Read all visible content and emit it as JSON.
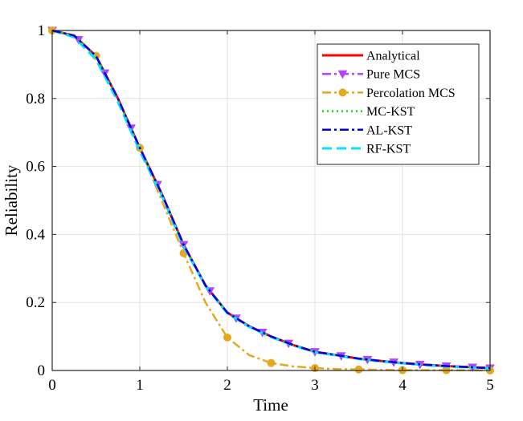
{
  "chart_data": {
    "type": "line",
    "title": "",
    "xlabel": "Time",
    "ylabel": "Reliability",
    "xlim": [
      0,
      5
    ],
    "ylim": [
      0,
      1
    ],
    "grid": true,
    "legend_position": "top-right",
    "x_ticks": [
      0,
      1,
      2,
      3,
      4,
      5
    ],
    "y_ticks": [
      0,
      0.2,
      0.4,
      0.6,
      0.8,
      1
    ],
    "x_tick_labels": [
      "0",
      "1",
      "2",
      "3",
      "4",
      "5"
    ],
    "y_tick_labels": [
      "0",
      "0.2",
      "0.4",
      "0.6",
      "0.8",
      "1"
    ],
    "colors": {
      "analytical": "#ff0000",
      "pure_mcs": "#b044ff",
      "percolation_mcs": "#e6a820",
      "mc_kst": "#00dd00",
      "al_kst": "#0000dd",
      "rf_kst": "#00e5ff"
    },
    "series": [
      {
        "name": "Analytical",
        "color": "#ff0000",
        "style": "solid",
        "width": 3,
        "marker": "none",
        "x": [
          0,
          0.25,
          0.5,
          0.75,
          1.0,
          1.25,
          1.5,
          1.75,
          2.0,
          2.25,
          2.5,
          2.75,
          3.0,
          3.25,
          3.5,
          3.75,
          4.0,
          4.25,
          4.5,
          4.75,
          5.0
        ],
        "values": [
          1.0,
          0.985,
          0.925,
          0.8,
          0.655,
          0.52,
          0.37,
          0.25,
          0.17,
          0.13,
          0.1,
          0.075,
          0.055,
          0.045,
          0.035,
          0.028,
          0.022,
          0.017,
          0.013,
          0.01,
          0.007
        ]
      },
      {
        "name": "Pure MCS",
        "color": "#b044ff",
        "style": "dashdot",
        "width": 2.5,
        "marker": "triangle-down",
        "marker_x": [
          0,
          0.3,
          0.6,
          0.9,
          1.2,
          1.5,
          1.8,
          2.1,
          2.4,
          2.7,
          3.0,
          3.3,
          3.6,
          3.9,
          4.2,
          4.5,
          4.8,
          5.0
        ],
        "x": [
          0,
          0.25,
          0.5,
          0.75,
          1.0,
          1.25,
          1.5,
          1.75,
          2.0,
          2.25,
          2.5,
          2.75,
          3.0,
          3.25,
          3.5,
          3.75,
          4.0,
          4.25,
          4.5,
          4.75,
          5.0
        ],
        "values": [
          1.0,
          0.985,
          0.925,
          0.8,
          0.655,
          0.52,
          0.37,
          0.25,
          0.17,
          0.13,
          0.1,
          0.075,
          0.055,
          0.045,
          0.035,
          0.028,
          0.022,
          0.017,
          0.013,
          0.01,
          0.007
        ]
      },
      {
        "name": "Percolation MCS",
        "color": "#e6a820",
        "style": "dashdot",
        "width": 2.5,
        "marker": "circle",
        "marker_x": [
          0,
          0.5,
          1.0,
          1.5,
          2.0,
          2.5,
          3.0,
          3.5,
          4.0,
          4.5,
          5.0
        ],
        "x": [
          0,
          0.25,
          0.5,
          0.75,
          1.0,
          1.25,
          1.5,
          1.75,
          2.0,
          2.25,
          2.5,
          2.75,
          3.0,
          3.25,
          3.5,
          3.75,
          4.0,
          4.5,
          5.0
        ],
        "values": [
          1.0,
          0.985,
          0.925,
          0.8,
          0.655,
          0.5,
          0.345,
          0.2,
          0.097,
          0.045,
          0.022,
          0.012,
          0.007,
          0.004,
          0.003,
          0.002,
          0.001,
          0.001,
          0.0
        ]
      },
      {
        "name": "MC-KST",
        "color": "#00dd00",
        "style": "dotted",
        "width": 2.5,
        "marker": "none",
        "x": [
          0,
          0.25,
          0.5,
          0.75,
          1.0,
          1.25,
          1.5,
          1.75,
          2.0,
          2.25,
          2.5,
          2.75,
          3.0,
          3.25,
          3.5,
          3.75,
          4.0,
          4.25,
          4.5,
          4.75,
          5.0
        ],
        "values": [
          1.0,
          0.985,
          0.925,
          0.8,
          0.655,
          0.52,
          0.37,
          0.25,
          0.17,
          0.13,
          0.1,
          0.075,
          0.055,
          0.045,
          0.035,
          0.028,
          0.022,
          0.017,
          0.013,
          0.01,
          0.007
        ]
      },
      {
        "name": "AL-KST",
        "color": "#0000dd",
        "style": "dashdot",
        "width": 2.5,
        "marker": "none",
        "x": [
          0,
          0.25,
          0.5,
          0.75,
          1.0,
          1.25,
          1.5,
          1.75,
          2.0,
          2.25,
          2.5,
          2.75,
          3.0,
          3.25,
          3.5,
          3.75,
          4.0,
          4.25,
          4.5,
          4.75,
          5.0
        ],
        "values": [
          1.0,
          0.985,
          0.925,
          0.8,
          0.655,
          0.52,
          0.37,
          0.25,
          0.17,
          0.13,
          0.1,
          0.075,
          0.055,
          0.045,
          0.035,
          0.028,
          0.022,
          0.017,
          0.013,
          0.01,
          0.007
        ]
      },
      {
        "name": "RF-KST",
        "color": "#00e5ff",
        "style": "dashed",
        "width": 3,
        "marker": "none",
        "x": [
          0,
          0.25,
          0.5,
          0.75,
          1.0,
          1.25,
          1.5,
          1.75,
          2.0,
          2.25,
          2.5,
          2.75,
          3.0,
          3.25,
          3.5,
          3.75,
          4.0,
          4.25,
          4.5,
          4.75,
          5.0
        ],
        "values": [
          1.0,
          0.98,
          0.915,
          0.79,
          0.645,
          0.515,
          0.365,
          0.248,
          0.168,
          0.128,
          0.098,
          0.074,
          0.054,
          0.044,
          0.034,
          0.027,
          0.021,
          0.016,
          0.012,
          0.009,
          0.006
        ]
      }
    ]
  }
}
